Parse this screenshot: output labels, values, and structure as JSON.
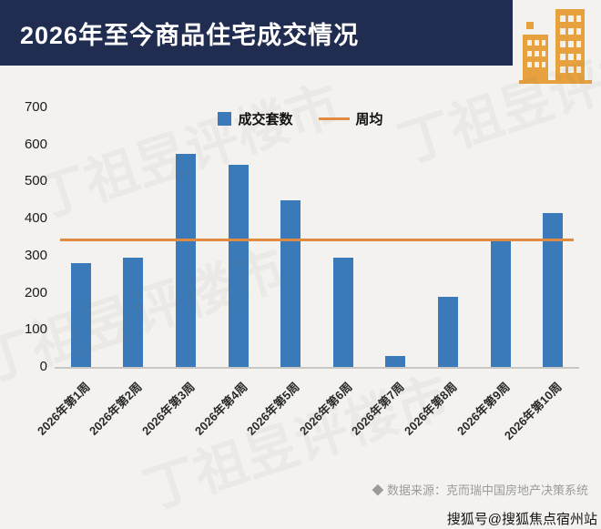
{
  "header": {
    "title": "2026年至今商品住宅成交情况"
  },
  "chart_data": {
    "type": "bar",
    "title": "2026年至今商品住宅成交情况",
    "categories": [
      "2026年第1周",
      "2026年第2周",
      "2026年第3周",
      "2026年第4周",
      "2026年第5周",
      "2026年第6周",
      "2026年第7周",
      "2026年第8周",
      "2026年第9周",
      "2026年第10周"
    ],
    "series": [
      {
        "name": "成交套数",
        "values": [
          280,
          295,
          575,
          545,
          450,
          295,
          30,
          190,
          340,
          415
        ]
      }
    ],
    "average_line": {
      "name": "周均",
      "value": 340
    },
    "xlabel": "",
    "ylabel": "",
    "ylim": [
      0,
      700
    ],
    "yticks": [
      0,
      100,
      200,
      300,
      400,
      500,
      600,
      700
    ],
    "grid": false,
    "legend_position": "top-center",
    "colors": {
      "bar": "#3b7ab9",
      "line": "#e18a41",
      "header": "#202c50",
      "icon": "#e7a13f"
    }
  },
  "footer": {
    "source": "◆ 数据来源：克而瑞中国房地产决策系统",
    "handle": "搜狐号@搜狐焦点宿州站"
  },
  "watermark": {
    "text": "丁祖昱评楼市"
  }
}
